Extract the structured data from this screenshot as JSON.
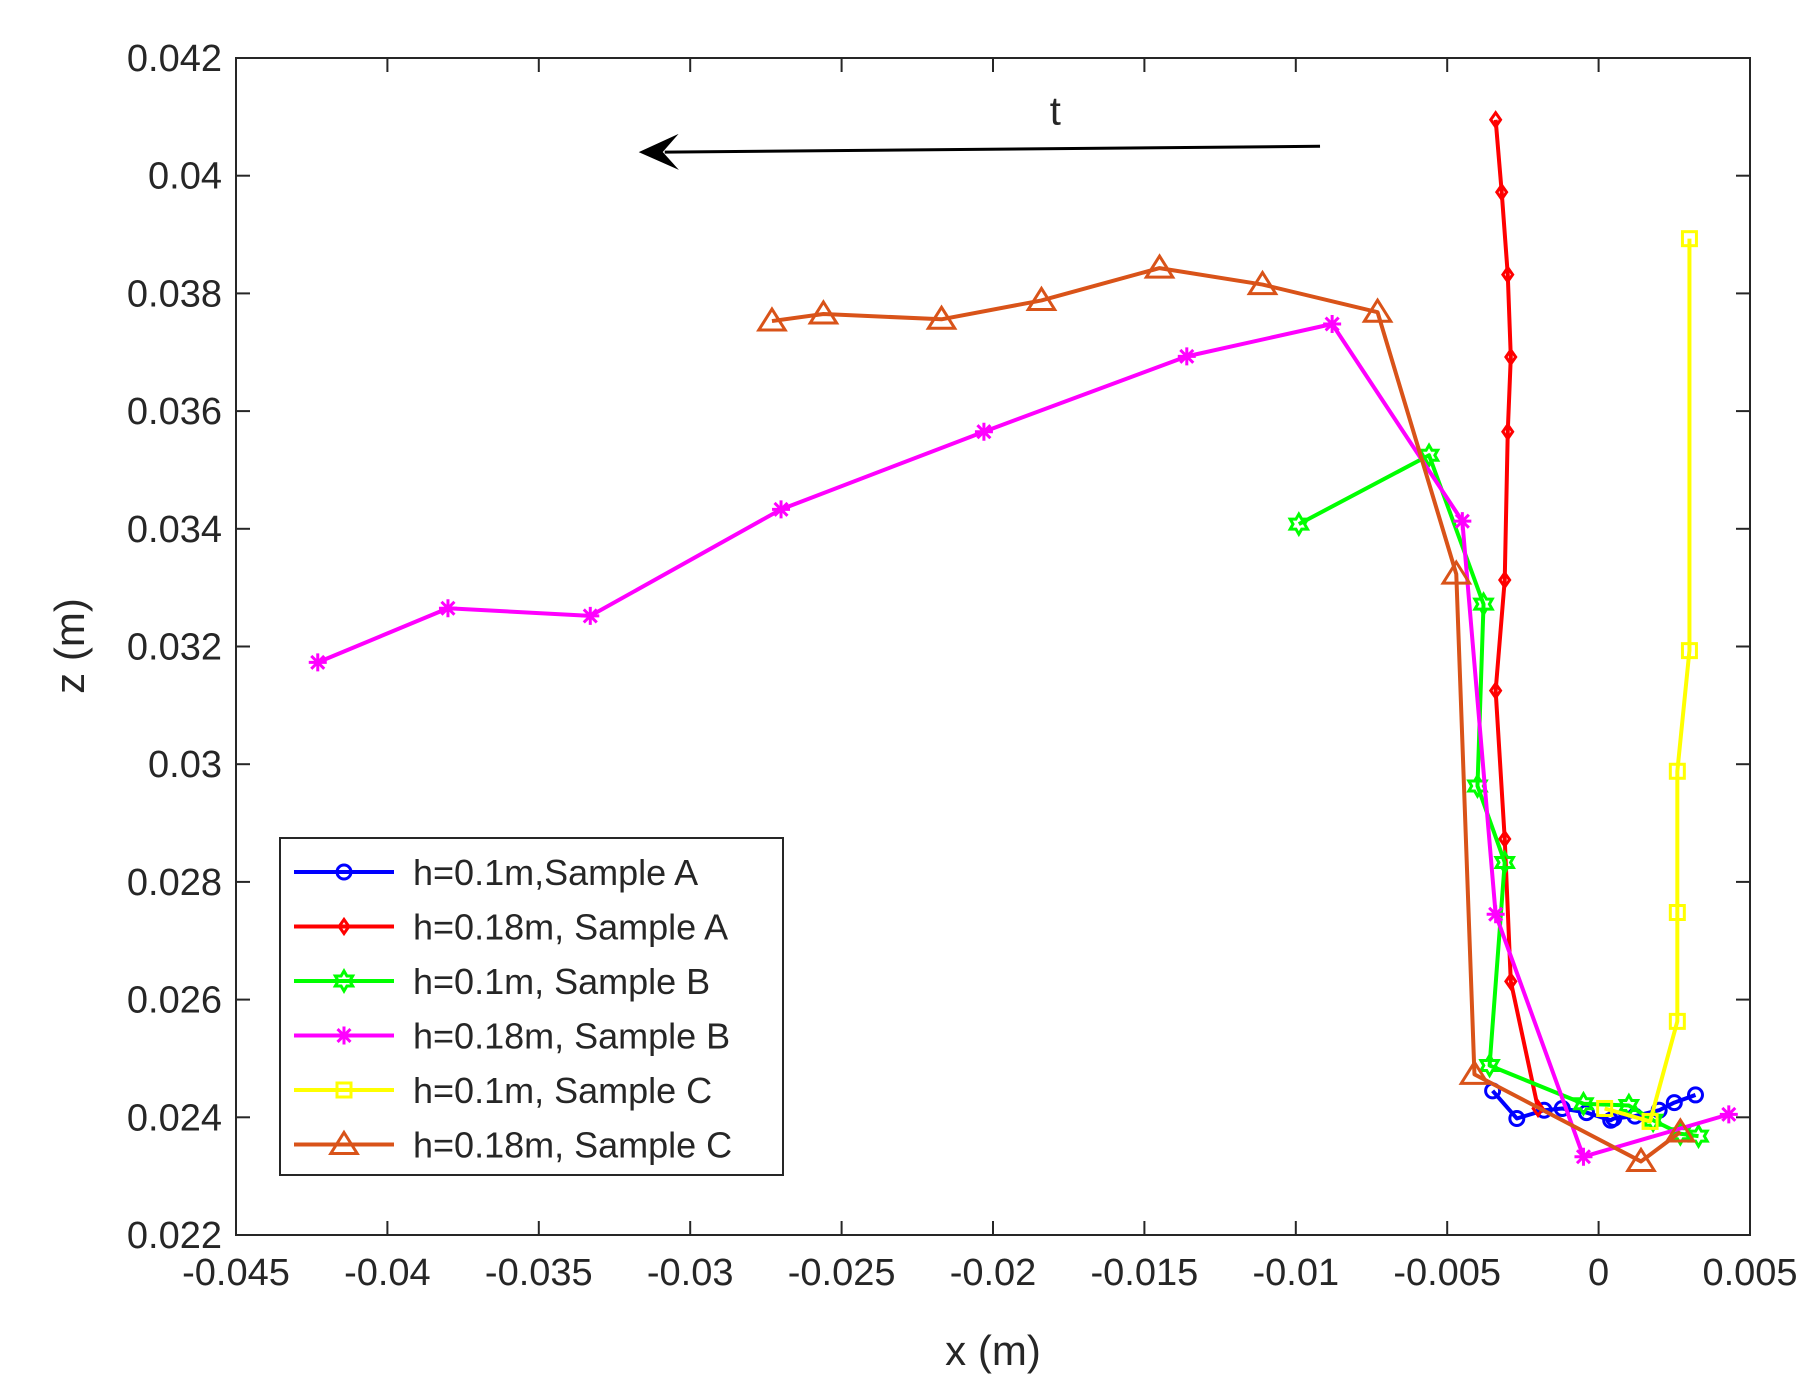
{
  "chart_data": {
    "type": "line",
    "title": "",
    "xlabel": "x (m)",
    "ylabel": "z (m)",
    "xlim": [
      -0.045,
      0.005
    ],
    "ylim": [
      0.022,
      0.042
    ],
    "xticks": [
      -0.045,
      -0.04,
      -0.035,
      -0.03,
      -0.025,
      -0.02,
      -0.015,
      -0.01,
      -0.005,
      0,
      0.005
    ],
    "xtick_labels": [
      "-0.045",
      "-0.04",
      "-0.035",
      "-0.03",
      "-0.025",
      "-0.02",
      "-0.015",
      "-0.01",
      "-0.005",
      "0",
      "0.005"
    ],
    "yticks": [
      0.022,
      0.024,
      0.026,
      0.028,
      0.03,
      0.032,
      0.034,
      0.036,
      0.038,
      0.04,
      0.042
    ],
    "ytick_labels": [
      "0.022",
      "0.024",
      "0.026",
      "0.028",
      "0.03",
      "0.032",
      "0.034",
      "0.036",
      "0.038",
      "0.04",
      "0.042"
    ],
    "grid": false,
    "legend_position": "bottom-left",
    "annotation": {
      "text": "t",
      "arrow_from": [
        -0.0092,
        0.0405
      ],
      "arrow_to": [
        -0.0317,
        0.0404
      ]
    },
    "series": [
      {
        "name": "h=0.1m,Sample A",
        "color": "#0000ff",
        "marker": "circle",
        "x": [
          -0.0035,
          -0.0027,
          -0.0018,
          -0.0012,
          -0.0004,
          0.0004,
          0.0005,
          0.0012,
          0.002,
          0.0025,
          0.0032
        ],
        "y": [
          0.02445,
          0.02398,
          0.02412,
          0.02415,
          0.02408,
          0.02395,
          0.02398,
          0.02402,
          0.02412,
          0.02425,
          0.02438
        ]
      },
      {
        "name": "h=0.18m, Sample A",
        "color": "#ff0000",
        "marker": "diamond",
        "x": [
          -0.0034,
          -0.0032,
          -0.003,
          -0.0029,
          -0.003,
          -0.0031,
          -0.0034,
          -0.0031,
          -0.0029,
          -0.002
        ],
        "y": [
          0.04095,
          0.03972,
          0.03832,
          0.03692,
          0.03565,
          0.03313,
          0.03125,
          0.02873,
          0.02631,
          0.02415
        ]
      },
      {
        "name": "h=0.1m, Sample B",
        "color": "#00ff00",
        "marker": "hexagram",
        "x": [
          -0.0099,
          -0.0056,
          -0.0038,
          -0.004,
          -0.0031,
          -0.0036,
          -0.0005,
          0.001,
          0.0018,
          0.0027,
          0.0033
        ],
        "y": [
          0.03408,
          0.03525,
          0.03272,
          0.02963,
          0.02833,
          0.02488,
          0.02423,
          0.0242,
          0.02395,
          0.02372,
          0.02368
        ]
      },
      {
        "name": "h=0.18m, Sample B",
        "color": "#ff00ff",
        "marker": "asterisk",
        "x": [
          -0.0423,
          -0.038,
          -0.0333,
          -0.027,
          -0.0203,
          -0.0136,
          -0.0088,
          -0.0045,
          -0.0034,
          -0.0005,
          0.0043
        ],
        "y": [
          0.03173,
          0.03265,
          0.03252,
          0.03433,
          0.03565,
          0.03693,
          0.03748,
          0.03413,
          0.02745,
          0.02333,
          0.02405
        ]
      },
      {
        "name": "h=0.1m, Sample C",
        "color": "#ffff00",
        "marker": "square",
        "x": [
          0.003,
          0.003,
          0.0026,
          0.0026,
          0.0026,
          0.0017,
          0.0002
        ],
        "y": [
          0.03893,
          0.03193,
          0.02988,
          0.02748,
          0.02563,
          0.02393,
          0.02415
        ]
      },
      {
        "name": "h=0.18m, Sample C",
        "color": "#d95319",
        "marker": "triangle",
        "x": [
          -0.0273,
          -0.0256,
          -0.0217,
          -0.0184,
          -0.0145,
          -0.0111,
          -0.0073,
          -0.0047,
          -0.0041,
          0.0014,
          0.0027
        ],
        "y": [
          0.03753,
          0.03765,
          0.03756,
          0.03788,
          0.03843,
          0.03815,
          0.03768,
          0.03323,
          0.02473,
          0.02325,
          0.02375
        ]
      }
    ]
  }
}
